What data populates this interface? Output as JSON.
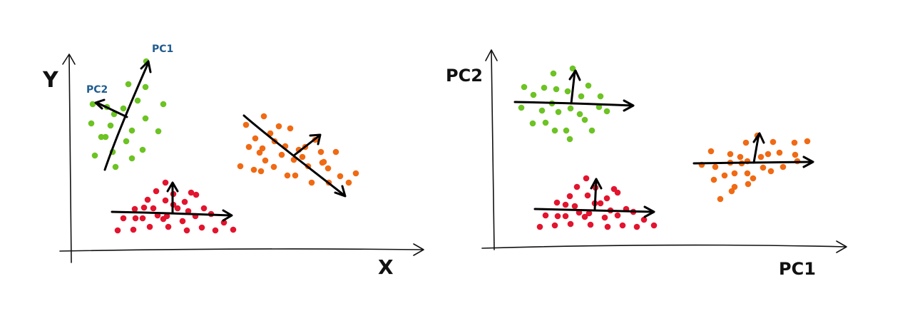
{
  "colors": {
    "green": "#6cc323",
    "orange": "#f06a14",
    "red": "#e3142e",
    "ink": "#111111",
    "blue_label": "#1f5c8f"
  },
  "left_panel": {
    "x_axis_label": "X",
    "y_axis_label": "Y",
    "pc1_label": "PC1",
    "pc2_label": "PC2"
  },
  "right_panel": {
    "x_axis_label": "PC1",
    "y_axis_label": "PC2"
  },
  "clusters": [
    {
      "name": "green",
      "color_key": "green"
    },
    {
      "name": "orange",
      "color_key": "orange"
    },
    {
      "name": "red",
      "color_key": "red"
    }
  ]
}
